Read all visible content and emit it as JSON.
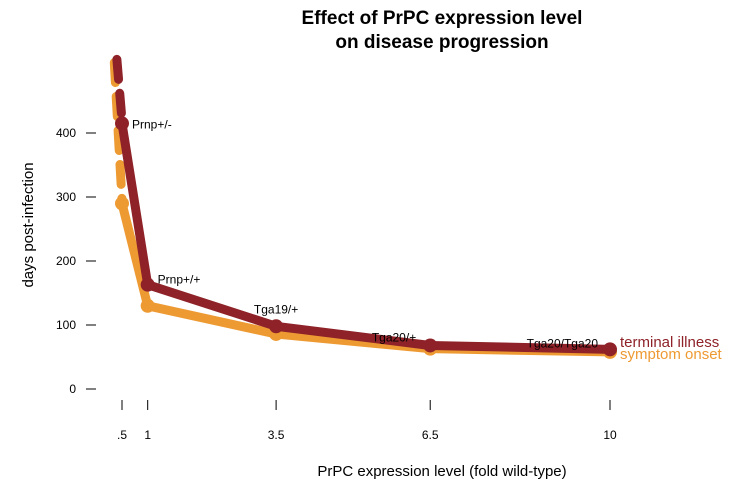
{
  "chart_data": {
    "type": "line",
    "title_line1": "Effect of PrPC expression level",
    "title_line2": "on disease progression",
    "xlabel": "PrPC expression level (fold wild-type)",
    "ylabel": "days post-infection",
    "x_ticks": [
      {
        "value": 0.5,
        "label": ".5"
      },
      {
        "value": 1,
        "label": "1"
      },
      {
        "value": 3.5,
        "label": "3.5"
      },
      {
        "value": 6.5,
        "label": "6.5"
      },
      {
        "value": 10,
        "label": "10"
      }
    ],
    "y_ticks": [
      {
        "value": 0,
        "label": "0"
      },
      {
        "value": 100,
        "label": "100"
      },
      {
        "value": 200,
        "label": "200"
      },
      {
        "value": 300,
        "label": "300"
      },
      {
        "value": 400,
        "label": "400"
      }
    ],
    "xlim": [
      0,
      10
    ],
    "ylim": [
      0,
      520
    ],
    "series": [
      {
        "name": "terminal illness",
        "color": "#8e2228",
        "dashed_segment": {
          "x": [
            0.4,
            0.5
          ],
          "y": [
            515,
            420
          ]
        },
        "x": [
          0.5,
          1,
          3.5,
          6.5,
          10
        ],
        "y": [
          415,
          163,
          98,
          68,
          62
        ]
      },
      {
        "name": "symptom onset",
        "color": "#ee9a33",
        "dashed_segment": {
          "x": [
            0.35,
            0.5
          ],
          "y": [
            510,
            295
          ]
        },
        "x": [
          0.5,
          1,
          3.5,
          6.5,
          10
        ],
        "y": [
          290,
          130,
          86,
          63,
          58
        ]
      }
    ],
    "point_labels": [
      {
        "text": "Prnp+/-",
        "x": 0.5,
        "y": 415
      },
      {
        "text": "Prnp+/+",
        "x": 1,
        "y": 163
      },
      {
        "text": "Tga19/+",
        "x": 3.5,
        "y": 98
      },
      {
        "text": "Tga20/+",
        "x": 6.5,
        "y": 68
      },
      {
        "text": "Tga20/Tga20",
        "x": 10,
        "y": 62
      }
    ],
    "grid": false,
    "legend_placement": "right, at line ends"
  }
}
